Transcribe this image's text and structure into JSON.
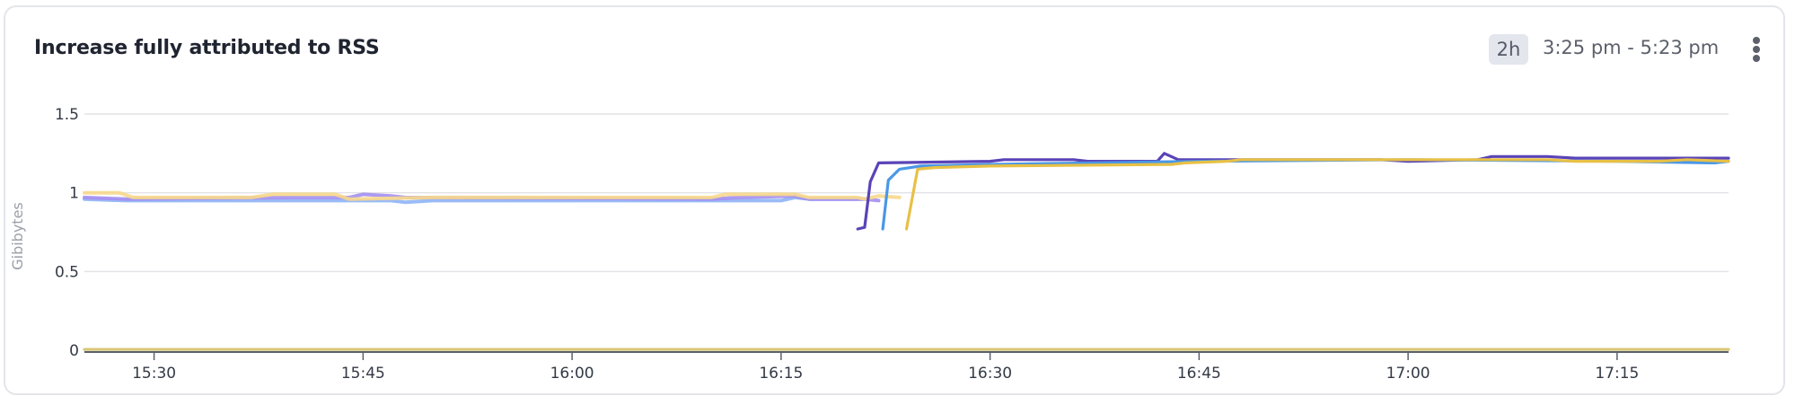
{
  "header": {
    "title": "Increase fully attributed to RSS",
    "range_badge": "2h",
    "time_range": "3:25 pm - 5:23 pm",
    "menu_icon": "kebab-vertical-icon"
  },
  "chart_data": {
    "type": "line",
    "title": "Increase fully attributed to RSS",
    "xlabel": "",
    "ylabel": "Gibibytes",
    "xlim": [
      "15:25",
      "17:23"
    ],
    "ylim": [
      0,
      1.5
    ],
    "x_ticks": [
      "15:30",
      "15:45",
      "16:00",
      "16:15",
      "16:30",
      "16:45",
      "17:00",
      "17:15"
    ],
    "y_ticks": [
      "0",
      "0.5",
      "1",
      "1.5"
    ],
    "grid": true,
    "legend": "none",
    "series": [
      {
        "color": "#8fb4f5",
        "points": [
          [
            "15:25",
            0.96
          ],
          [
            "15:28",
            0.95
          ],
          [
            "15:47",
            0.95
          ],
          [
            "15:48",
            0.94
          ],
          [
            "15:50",
            0.95
          ],
          [
            "16:15",
            0.95
          ],
          [
            "16:16",
            0.97
          ],
          [
            "16:17",
            0.96
          ],
          [
            "16:21",
            0.96
          ]
        ]
      },
      {
        "color": "#a48ff2",
        "points": [
          [
            "15:25",
            0.97
          ],
          [
            "15:28",
            0.96
          ],
          [
            "15:40",
            0.97
          ],
          [
            "15:44",
            0.97
          ],
          [
            "15:45",
            0.99
          ],
          [
            "15:47",
            0.98
          ],
          [
            "15:48",
            0.97
          ],
          [
            "16:10",
            0.96
          ],
          [
            "16:12",
            0.97
          ],
          [
            "16:16",
            0.98
          ],
          [
            "16:17",
            0.96
          ],
          [
            "16:21",
            0.96
          ],
          [
            "16:22",
            0.95
          ]
        ]
      },
      {
        "color": "#f7d88c",
        "points": [
          [
            "15:25",
            1.0
          ],
          [
            "15:27.5",
            1.0
          ],
          [
            "15:28.5",
            0.97
          ],
          [
            "15:37",
            0.97
          ],
          [
            "15:38.5",
            0.99
          ],
          [
            "15:43",
            0.99
          ],
          [
            "15:44",
            0.96
          ],
          [
            "15:50",
            0.97
          ],
          [
            "16:10",
            0.97
          ],
          [
            "16:11",
            0.99
          ],
          [
            "16:16",
            0.99
          ],
          [
            "16:17",
            0.97
          ],
          [
            "16:20.5",
            0.97
          ],
          [
            "16:21",
            0.96
          ],
          [
            "16:22",
            0.98
          ],
          [
            "16:23.5",
            0.97
          ]
        ]
      },
      {
        "color": "#5a43b8",
        "points": [
          [
            "16:20.5",
            0.77
          ],
          [
            "16:21",
            0.78
          ],
          [
            "16:21.4",
            1.07
          ],
          [
            "16:22",
            1.19
          ],
          [
            "16:30",
            1.2
          ],
          [
            "16:31",
            1.21
          ],
          [
            "16:36",
            1.21
          ],
          [
            "16:37",
            1.2
          ],
          [
            "16:42",
            1.2
          ],
          [
            "16:42.5",
            1.25
          ],
          [
            "16:43.5",
            1.21
          ],
          [
            "16:58",
            1.21
          ],
          [
            "17:00",
            1.2
          ],
          [
            "17:05",
            1.21
          ],
          [
            "17:06",
            1.23
          ],
          [
            "17:10",
            1.23
          ],
          [
            "17:12",
            1.22
          ],
          [
            "17:23",
            1.22
          ]
        ]
      },
      {
        "color": "#4a97e6",
        "points": [
          [
            "16:22.3",
            0.77
          ],
          [
            "16:22.7",
            1.08
          ],
          [
            "16:23.5",
            1.15
          ],
          [
            "16:25",
            1.17
          ],
          [
            "16:30",
            1.18
          ],
          [
            "16:45",
            1.2
          ],
          [
            "17:00",
            1.21
          ],
          [
            "17:15",
            1.2
          ],
          [
            "17:22",
            1.19
          ],
          [
            "17:23",
            1.2
          ]
        ]
      },
      {
        "color": "#e8c046",
        "points": [
          [
            "16:24",
            0.77
          ],
          [
            "16:24.8",
            1.15
          ],
          [
            "16:26",
            1.16
          ],
          [
            "16:30",
            1.17
          ],
          [
            "16:43",
            1.18
          ],
          [
            "16:44",
            1.19
          ],
          [
            "16:47",
            1.2
          ],
          [
            "16:48",
            1.21
          ],
          [
            "17:10",
            1.21
          ],
          [
            "17:12",
            1.2
          ],
          [
            "17:18",
            1.2
          ],
          [
            "17:20",
            1.21
          ],
          [
            "17:23",
            1.2
          ]
        ]
      },
      {
        "color": "#d9c77a",
        "points": [
          [
            "15:25",
            0.005
          ],
          [
            "17:23",
            0.005
          ]
        ]
      }
    ]
  }
}
